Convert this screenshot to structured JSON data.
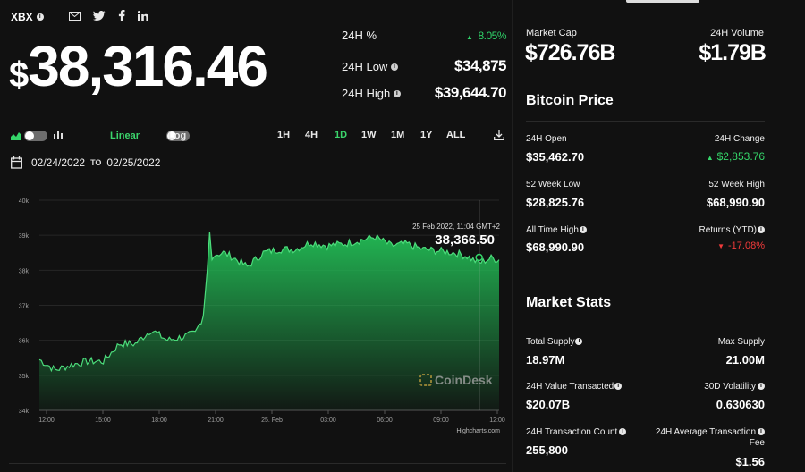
{
  "header": {
    "ticker": "XBX",
    "share_icons": [
      "mail-icon",
      "twitter-icon",
      "facebook-icon",
      "linkedin-icon"
    ],
    "currency_symbol": "$",
    "price": "38,316.46"
  },
  "summary": {
    "pct_label": "24H %",
    "pct_value": "8.05%",
    "low_label": "24H Low",
    "low_value": "$34,875",
    "high_label": "24H High",
    "high_value": "$39,644.70"
  },
  "toolbar": {
    "linear_label": "Linear",
    "log_label": "Log",
    "timeframes": [
      "1H",
      "4H",
      "1D",
      "1W",
      "1M",
      "1Y",
      "ALL"
    ],
    "active_timeframe": "1D"
  },
  "date_range": {
    "from": "02/24/2022",
    "to_label": "TO",
    "to": "02/25/2022"
  },
  "chart_data": {
    "type": "area",
    "ylim": [
      34000,
      40000
    ],
    "y_ticks": [
      "40k",
      "39k",
      "38k",
      "37k",
      "36k",
      "35k",
      "34k"
    ],
    "x_ticks": [
      "12:00",
      "15:00",
      "18:00",
      "21:00",
      "25. Feb",
      "03:00",
      "06:00",
      "09:00",
      "12:00"
    ],
    "tooltip_time": "25 Feb 2022, 11:04 GMT+2",
    "tooltip_value": "38,366.50",
    "credit": "Highcharts.com",
    "watermark": "CoinDesk",
    "x": [
      0,
      2,
      4,
      6,
      8,
      10,
      12,
      14,
      16,
      18,
      19.5,
      20.5,
      21,
      21.3,
      21.6,
      22,
      23,
      24,
      26,
      28,
      30,
      32,
      34,
      36,
      38,
      40,
      42,
      44,
      46,
      48,
      50,
      52,
      53.5,
      55,
      56.5,
      57.5
    ],
    "y": [
      35.45,
      35.15,
      35.3,
      35.4,
      35.4,
      35.9,
      35.9,
      36.3,
      36.0,
      36.1,
      36.2,
      36.7,
      38.0,
      39.1,
      38.3,
      38.45,
      38.5,
      38.4,
      38.1,
      38.5,
      38.6,
      38.6,
      38.8,
      38.7,
      38.75,
      38.85,
      38.95,
      38.7,
      38.75,
      38.6,
      38.55,
      38.5,
      38.4,
      38.2,
      38.35,
      38.3
    ],
    "color": "#18a84a"
  },
  "market": {
    "cap_label": "Market Cap",
    "cap_value": "$726.76B",
    "vol_label": "24H Volume",
    "vol_value": "$1.79B"
  },
  "bitcoin_price": {
    "title": "Bitcoin Price",
    "open_label": "24H Open",
    "open_value": "$35,462.70",
    "change_label": "24H Change",
    "change_value": "$2,853.76",
    "low52_label": "52 Week Low",
    "low52_value": "$28,825.76",
    "high52_label": "52 Week High",
    "high52_value": "$68,990.90",
    "ath_label": "All Time High",
    "ath_value": "$68,990.90",
    "ytd_label": "Returns (YTD)",
    "ytd_value": "-17.08%"
  },
  "market_stats": {
    "title": "Market Stats",
    "supply_label": "Total Supply",
    "supply_value": "18.97M",
    "max_label": "Max Supply",
    "max_value": "21.00M",
    "vt_label": "24H Value Transacted",
    "vt_value": "$20.07B",
    "vol30_label": "30D Volatility",
    "vol30_value": "0.630630",
    "tc_label": "24H Transaction Count",
    "tc_value": "255,800",
    "fee_label_1": "24H Average Transaction",
    "fee_label_2": "Fee",
    "fee_value": "$1.56"
  }
}
